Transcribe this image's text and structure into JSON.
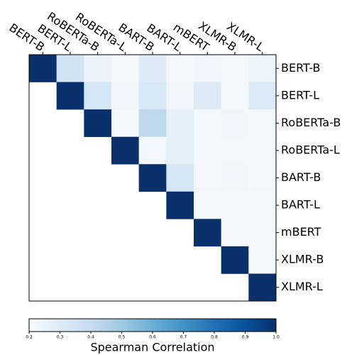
{
  "chart_data": {
    "type": "heatmap",
    "x_categories": [
      "BERT-B",
      "BERT-L",
      "RoBERTa-B",
      "RoBERTa-L",
      "BART-B",
      "BART-L",
      "mBERT",
      "XLMR-B",
      "XLMR-L"
    ],
    "y_categories": [
      "BERT-B",
      "BERT-L",
      "RoBERTa-B",
      "RoBERTa-L",
      "BART-B",
      "BART-L",
      "mBERT",
      "XLMR-B",
      "XLMR-L"
    ],
    "values": [
      [
        1,
        0.35,
        0.25,
        0.22,
        0.3,
        0.22,
        0.23,
        0.22,
        0.24
      ],
      [
        null,
        1,
        0.33,
        0.23,
        0.32,
        0.23,
        0.3,
        0.22,
        0.31
      ],
      [
        null,
        null,
        1,
        0.22,
        0.42,
        0.27,
        0.22,
        0.23,
        0.22
      ],
      [
        null,
        null,
        null,
        1,
        0.22,
        0.27,
        0.22,
        0.22,
        0.22
      ],
      [
        null,
        null,
        null,
        null,
        1,
        0.33,
        0.22,
        0.23,
        0.22
      ],
      [
        null,
        null,
        null,
        null,
        null,
        1,
        0.21,
        0.21,
        0.21
      ],
      [
        null,
        null,
        null,
        null,
        null,
        null,
        1,
        0.21,
        0.21
      ],
      [
        null,
        null,
        null,
        null,
        null,
        null,
        null,
        1,
        0.21
      ],
      [
        null,
        null,
        null,
        null,
        null,
        null,
        null,
        null,
        1
      ]
    ],
    "colormap": [
      "#f7fbff",
      "#deebf7",
      "#c6dbef",
      "#9ecae1",
      "#6baed6",
      "#4292c6",
      "#2171b5",
      "#08519c",
      "#08306b"
    ],
    "colorbar_label": "Spearman Correlation",
    "clim": [
      0.2,
      1.0
    ],
    "cticks": [
      0.2,
      0.3,
      0.4,
      0.5,
      0.6,
      0.7,
      0.8,
      0.9,
      {
        "value": 1.0,
        "label": "1.0"
      }
    ]
  }
}
